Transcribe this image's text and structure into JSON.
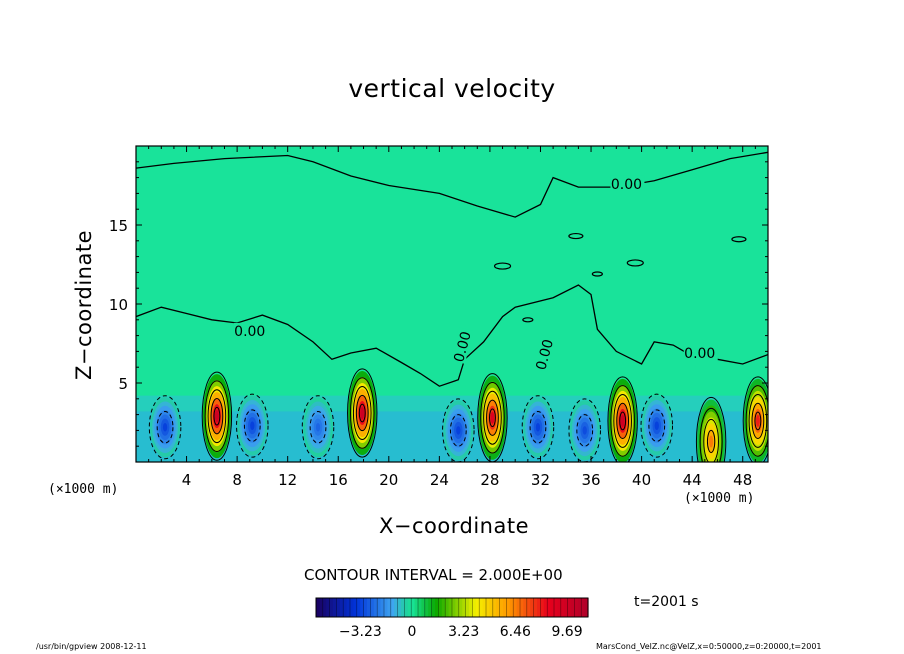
{
  "chart_data": {
    "type": "contour",
    "title": "vertical velocity",
    "xlabel": "X−coordinate",
    "ylabel": "Z−coordinate",
    "x_unit": "(×1000 m)",
    "xlim": [
      0,
      50
    ],
    "ylim": [
      0,
      20
    ],
    "x_ticks": [
      4,
      8,
      12,
      16,
      20,
      24,
      28,
      32,
      36,
      40,
      44,
      48
    ],
    "y_ticks": [
      5,
      10,
      15
    ],
    "contour_interval_label": "CONTOUR INTERVAL = 2.000E+00",
    "contour_label": "0.00",
    "background_color": "#19e39a",
    "updrafts": [
      {
        "x": 6.4,
        "z": 2.9,
        "peak": 9.69
      },
      {
        "x": 17.9,
        "z": 3.1,
        "peak": 9.69
      },
      {
        "x": 28.2,
        "z": 2.8,
        "peak": 9.0
      },
      {
        "x": 38.5,
        "z": 2.6,
        "peak": 9.69
      },
      {
        "x": 45.5,
        "z": 1.3,
        "peak": 6.5
      },
      {
        "x": 49.2,
        "z": 2.6,
        "peak": 8.0
      }
    ],
    "downdrafts": [
      {
        "x": 2.3,
        "z": 2.2,
        "min": -3.23
      },
      {
        "x": 9.2,
        "z": 2.3,
        "min": -3.23
      },
      {
        "x": 14.4,
        "z": 2.2,
        "min": -2.5
      },
      {
        "x": 25.5,
        "z": 2.0,
        "min": -3.23
      },
      {
        "x": 31.8,
        "z": 2.2,
        "min": -3.23
      },
      {
        "x": 35.5,
        "z": 2.0,
        "min": -3.0
      },
      {
        "x": 41.2,
        "z": 2.3,
        "min": -3.23
      }
    ],
    "colorbar": {
      "ticks": [
        "−3.23",
        "0",
        "3.23",
        "6.46",
        "9.69"
      ],
      "tick_values": [
        -3.23,
        0,
        3.23,
        6.46,
        9.69
      ],
      "range": [
        -6.0,
        11.0
      ],
      "colors": [
        "#1a0060",
        "#0033d9",
        "#3fa6f0",
        "#1fd39a",
        "#19e39a",
        "#0aa800",
        "#f4f000",
        "#ff9a00",
        "#e8001c",
        "#b0002a"
      ]
    }
  },
  "time_label": "t=2001 s",
  "footer": {
    "left": "/usr/bin/gpview   2008-12-11",
    "right": "MarsCond_VelZ.nc@VelZ,x=0:50000,z=0:20000,t=2001"
  }
}
